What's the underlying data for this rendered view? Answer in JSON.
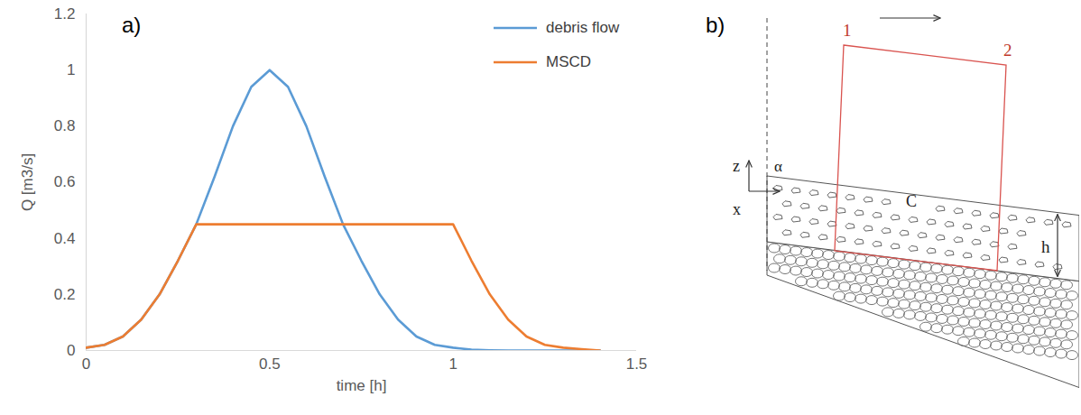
{
  "chart_data": {
    "type": "line",
    "panel_label": "a)",
    "x_label": "time [h]",
    "y_label": "Q [m3/s]",
    "x": [
      0,
      0.05,
      0.1,
      0.15,
      0.2,
      0.25,
      0.3,
      0.35,
      0.4,
      0.45,
      0.5,
      0.55,
      0.6,
      0.65,
      0.7,
      0.75,
      0.8,
      0.85,
      0.9,
      0.95,
      1.0,
      1.05,
      1.1,
      1.15,
      1.2,
      1.25,
      1.3,
      1.35,
      1.4
    ],
    "series": [
      {
        "name": "debris flow",
        "color": "#5b9bd5",
        "values": [
          0.01,
          0.02,
          0.05,
          0.11,
          0.2,
          0.32,
          0.45,
          0.62,
          0.8,
          0.94,
          1.0,
          0.94,
          0.8,
          0.62,
          0.45,
          0.32,
          0.2,
          0.11,
          0.05,
          0.02,
          0.01,
          0.003,
          0.001,
          0,
          0,
          0,
          0,
          0,
          0
        ]
      },
      {
        "name": "MSCD",
        "color": "#ed7d31",
        "values": [
          0.01,
          0.02,
          0.05,
          0.11,
          0.2,
          0.32,
          0.45,
          0.45,
          0.45,
          0.45,
          0.45,
          0.45,
          0.45,
          0.45,
          0.45,
          0.45,
          0.45,
          0.45,
          0.45,
          0.45,
          0.45,
          0.32,
          0.2,
          0.11,
          0.05,
          0.02,
          0.01,
          0.005,
          0
        ]
      }
    ],
    "xlim": [
      0,
      1.5
    ],
    "xticks": [
      0,
      0.5,
      1,
      1.5
    ],
    "ylim": [
      0,
      1.2
    ],
    "yticks": [
      0,
      0.2,
      0.4,
      0.6,
      0.8,
      1,
      1.2
    ],
    "grid": false,
    "legend": "top-right"
  },
  "diagram": {
    "panel_label": "b)",
    "labels": {
      "section_in": "1",
      "section_out": "2",
      "concentration": "C",
      "depth": "h",
      "angle": "α",
      "z_axis": "z",
      "x_axis": "x"
    }
  }
}
